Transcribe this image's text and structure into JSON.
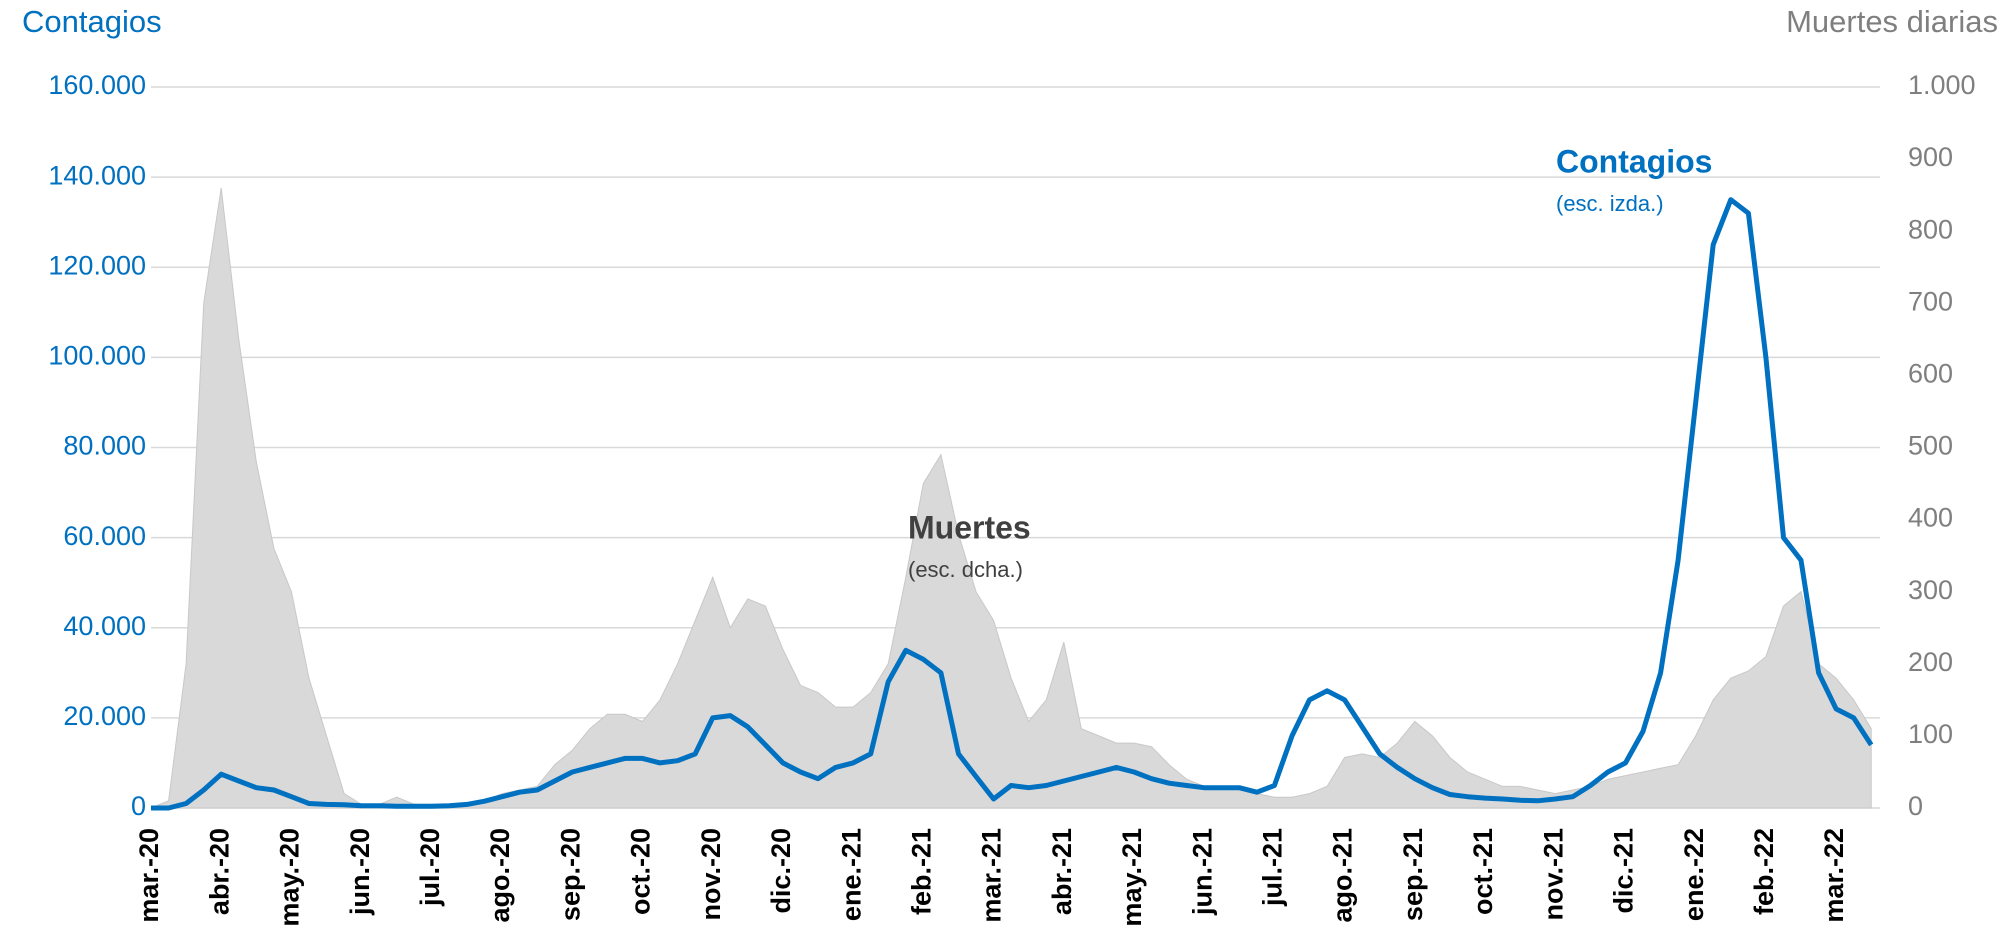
{
  "chart_data": {
    "type": "line",
    "title": "Contagios",
    "y2_title": "Muertes diarias",
    "annotations": [
      "Contagios",
      "(esc. izda.)",
      "Muertes",
      "(esc. dcha.)"
    ],
    "categories": [
      "mar.-20",
      null,
      null,
      null,
      "abr.-20",
      null,
      null,
      null,
      "may.-20",
      null,
      null,
      null,
      "jun.-20",
      null,
      null,
      null,
      "jul.-20",
      null,
      null,
      null,
      "ago.-20",
      null,
      null,
      null,
      "sep.-20",
      null,
      null,
      null,
      "oct.-20",
      null,
      null,
      null,
      "nov.-20",
      null,
      null,
      null,
      "dic.-20",
      null,
      null,
      null,
      "ene.-21",
      null,
      null,
      null,
      "feb.-21",
      null,
      null,
      null,
      "mar.-21",
      null,
      null,
      null,
      "abr.-21",
      null,
      null,
      null,
      "may.-21",
      null,
      null,
      null,
      "jun.-21",
      null,
      null,
      null,
      "jul.-21",
      null,
      null,
      null,
      "ago.-21",
      null,
      null,
      null,
      "sep.-21",
      null,
      null,
      null,
      "oct.-21",
      null,
      null,
      null,
      "nov.-21",
      null,
      null,
      null,
      "dic.-21",
      null,
      null,
      null,
      "ene.-22",
      null,
      null,
      null,
      "feb.-22",
      null,
      null,
      null,
      "mar.-22",
      null,
      null
    ],
    "series": [
      {
        "name": "Muertes",
        "type": "area",
        "axis": "y2",
        "color": "#d9d9d9",
        "values": [
          0,
          10,
          200,
          700,
          860,
          650,
          480,
          360,
          300,
          180,
          100,
          20,
          5,
          5,
          15,
          5,
          5,
          5,
          5,
          10,
          20,
          25,
          30,
          60,
          80,
          110,
          130,
          130,
          120,
          150,
          200,
          260,
          320,
          250,
          290,
          280,
          220,
          170,
          160,
          140,
          140,
          160,
          200,
          320,
          450,
          490,
          380,
          300,
          260,
          180,
          120,
          150,
          230,
          110,
          100,
          90,
          90,
          85,
          60,
          40,
          30,
          30,
          25,
          20,
          15,
          15,
          20,
          30,
          70,
          75,
          70,
          90,
          120,
          100,
          70,
          50,
          40,
          30,
          30,
          25,
          20,
          25,
          30,
          40,
          45,
          50,
          55,
          60,
          100,
          150,
          180,
          190,
          210,
          280,
          300,
          200,
          180,
          150,
          110
        ]
      },
      {
        "name": "Contagios",
        "type": "line",
        "axis": "y",
        "color": "#0070c0",
        "values": [
          0,
          0,
          1000,
          4000,
          7500,
          6000,
          4500,
          4000,
          2500,
          1000,
          800,
          700,
          500,
          500,
          400,
          400,
          400,
          500,
          800,
          1500,
          2500,
          3500,
          4000,
          6000,
          8000,
          9000,
          10000,
          11000,
          11000,
          10000,
          10500,
          12000,
          20000,
          20500,
          18000,
          14000,
          10000,
          8000,
          6500,
          9000,
          10000,
          12000,
          28000,
          35000,
          33000,
          30000,
          12000,
          7000,
          2000,
          5000,
          4500,
          5000,
          6000,
          7000,
          8000,
          9000,
          8000,
          6500,
          5500,
          5000,
          4500,
          4500,
          4500,
          3500,
          5000,
          16000,
          24000,
          26000,
          24000,
          18000,
          12000,
          9000,
          6500,
          4500,
          3000,
          2500,
          2200,
          2000,
          1700,
          1600,
          2000,
          2500,
          5000,
          8000,
          10000,
          17000,
          30000,
          55000,
          90000,
          125000,
          135000,
          132000,
          100000,
          60000,
          55000,
          30000,
          22000,
          20000,
          14000
        ]
      }
    ],
    "ylim": [
      0,
      160000
    ],
    "yticks": [
      0,
      {
        "value": 20000,
        "label": "20.000"
      },
      {
        "value": 40000,
        "label": "40.000"
      },
      {
        "value": 60000,
        "label": "60.000"
      },
      {
        "value": 80000,
        "label": "80.000"
      },
      {
        "value": 100000,
        "label": "100.000"
      },
      {
        "value": 120000,
        "label": "120.000"
      },
      {
        "value": 140000,
        "label": "140.000"
      },
      {
        "value": 160000,
        "label": "160.000"
      }
    ],
    "y2lim": [
      0,
      1000
    ],
    "y2ticks": [
      0,
      100,
      200,
      300,
      400,
      500,
      600,
      700,
      800,
      900,
      {
        "value": 1000,
        "label": "1.000"
      }
    ],
    "grid": true
  }
}
